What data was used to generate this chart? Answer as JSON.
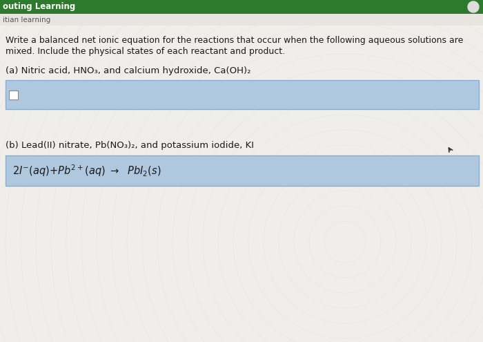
{
  "bg_color": "#f0eeeb",
  "header_text1": "outing Learning",
  "header_text2": "itian learning",
  "instruction_line1": "Write a balanced net ionic equation for the reactions that occur when the following aqueous solutions are",
  "instruction_line2": "mixed. Include the physical states of each reactant and product.",
  "part_a_label": "(a) Nitric acid, HNO₃, and calcium hydroxide, Ca(OH)₂",
  "part_b_label": "(b) Lead(II) nitrate, Pb(NO₃)₂, and potassium iodide, KI",
  "box_color": "#afc8e0",
  "box_border": "#8aaccc",
  "header_green": "#2d7a2d",
  "header_subbar": "#e8e5e0",
  "text_color": "#1a1a1a",
  "text_gray": "#555555",
  "font_size_header": 8.5,
  "font_size_subheader": 7.5,
  "font_size_body": 9.0,
  "font_size_label": 9.5,
  "font_size_equation": 10.5
}
